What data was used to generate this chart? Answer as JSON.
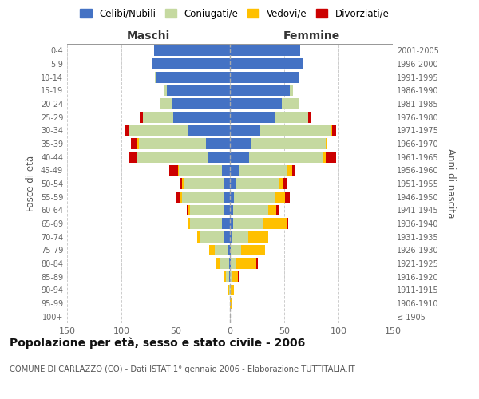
{
  "age_groups": [
    "100+",
    "95-99",
    "90-94",
    "85-89",
    "80-84",
    "75-79",
    "70-74",
    "65-69",
    "60-64",
    "55-59",
    "50-54",
    "45-49",
    "40-44",
    "35-39",
    "30-34",
    "25-29",
    "20-24",
    "15-19",
    "10-14",
    "5-9",
    "0-4"
  ],
  "birth_years": [
    "≤ 1905",
    "1906-1910",
    "1911-1915",
    "1916-1920",
    "1921-1925",
    "1926-1930",
    "1931-1935",
    "1936-1940",
    "1941-1945",
    "1946-1950",
    "1951-1955",
    "1956-1960",
    "1961-1965",
    "1966-1970",
    "1971-1975",
    "1976-1980",
    "1981-1985",
    "1986-1990",
    "1991-1995",
    "1996-2000",
    "2001-2005"
  ],
  "maschi": {
    "celibe": [
      0,
      0,
      0,
      1,
      1,
      2,
      5,
      7,
      5,
      6,
      6,
      7,
      20,
      22,
      38,
      52,
      53,
      58,
      68,
      72,
      70
    ],
    "coniugato": [
      0,
      0,
      1,
      3,
      8,
      12,
      22,
      30,
      32,
      38,
      37,
      40,
      65,
      62,
      55,
      28,
      12,
      3,
      1,
      0,
      0
    ],
    "vedovo": [
      0,
      0,
      1,
      2,
      4,
      5,
      3,
      2,
      1,
      2,
      1,
      1,
      1,
      1,
      0,
      0,
      0,
      0,
      0,
      0,
      0
    ],
    "divorziato": [
      0,
      0,
      0,
      0,
      0,
      0,
      0,
      0,
      2,
      4,
      2,
      8,
      7,
      6,
      3,
      3,
      0,
      0,
      0,
      0,
      0
    ]
  },
  "femmine": {
    "nubile": [
      0,
      0,
      0,
      0,
      1,
      1,
      2,
      3,
      3,
      4,
      5,
      8,
      18,
      20,
      28,
      42,
      48,
      55,
      63,
      68,
      65
    ],
    "coniugata": [
      0,
      0,
      1,
      2,
      5,
      9,
      15,
      28,
      32,
      38,
      40,
      45,
      68,
      68,
      65,
      30,
      15,
      3,
      1,
      0,
      0
    ],
    "vedova": [
      0,
      2,
      3,
      5,
      18,
      22,
      18,
      22,
      8,
      9,
      4,
      4,
      2,
      1,
      1,
      0,
      0,
      0,
      0,
      0,
      0
    ],
    "divorziata": [
      0,
      0,
      0,
      1,
      2,
      0,
      0,
      1,
      2,
      4,
      3,
      3,
      10,
      1,
      4,
      2,
      0,
      0,
      0,
      0,
      0
    ]
  },
  "colors": {
    "celibe": "#4472c4",
    "coniugato": "#c5d9a0",
    "vedovo": "#ffc000",
    "divorziato": "#cc0000"
  },
  "xlim": 150,
  "title": "Popolazione per età, sesso e stato civile - 2006",
  "subtitle": "COMUNE DI CARLAZZO (CO) - Dati ISTAT 1° gennaio 2006 - Elaborazione TUTTITALIA.IT",
  "ylabel_left": "Fasce di età",
  "ylabel_right": "Anni di nascita",
  "xlabel_maschi": "Maschi",
  "xlabel_femmine": "Femmine",
  "background_color": "#ffffff",
  "grid_color": "#cccccc"
}
